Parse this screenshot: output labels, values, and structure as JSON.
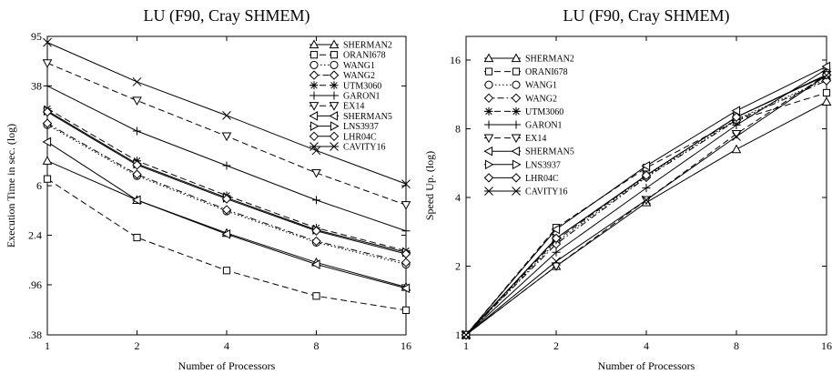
{
  "chart_data": [
    {
      "type": "line",
      "title": "LU (F90, Cray SHMEM)",
      "xlabel": "Number of Processors",
      "ylabel": "Execution Time in sec. (log)",
      "x": [
        1,
        2,
        4,
        8,
        16
      ],
      "x_ticks": [
        "1",
        "2",
        "4",
        "8",
        "16"
      ],
      "y_ticks": [
        {
          "label": ".38",
          "value": 0.38
        },
        {
          "label": ".96",
          "value": 0.96
        },
        {
          "label": "2.4",
          "value": 2.4
        },
        {
          "label": "6",
          "value": 6
        },
        {
          "label": "38",
          "value": 38
        },
        {
          "label": "95",
          "value": 95
        }
      ],
      "ylim": [
        0.38,
        95
      ],
      "xscale": "log2",
      "yscale": "log",
      "legend_position": "top-right",
      "series": [
        {
          "name": "SHERMAN2",
          "marker": "triangle-up",
          "dash": "solid",
          "values": [
            9.5,
            4.6,
            2.5,
            1.45,
            0.92
          ]
        },
        {
          "name": "ORANI678",
          "marker": "square",
          "dash": "dashed",
          "values": [
            6.8,
            2.3,
            1.25,
            0.78,
            0.6
          ]
        },
        {
          "name": "WANG1",
          "marker": "circle",
          "dash": "dotted",
          "values": [
            18.5,
            7.2,
            3.75,
            2.1,
            1.4
          ]
        },
        {
          "name": "WANG2",
          "marker": "diamond",
          "dash": "dashdot",
          "values": [
            19.0,
            7.4,
            3.85,
            2.15,
            1.45
          ]
        },
        {
          "name": "UTM3060",
          "marker": "asterisk",
          "dash": "dashed",
          "values": [
            25.0,
            9.5,
            5.0,
            2.75,
            1.8
          ]
        },
        {
          "name": "GARON1",
          "marker": "plus",
          "dash": "solid",
          "values": [
            38.0,
            16.5,
            8.7,
            4.6,
            2.6
          ]
        },
        {
          "name": "EX14",
          "marker": "triangle-down",
          "dash": "dashed",
          "values": [
            58.0,
            29.0,
            15.0,
            7.6,
            4.2
          ]
        },
        {
          "name": "SHERMAN5",
          "marker": "triangle-left",
          "dash": "solid",
          "values": [
            13.5,
            4.6,
            2.45,
            1.4,
            0.9
          ]
        },
        {
          "name": "LNS3937",
          "marker": "triangle-right",
          "dash": "solid",
          "values": [
            24.0,
            9.0,
            4.8,
            2.65,
            1.75
          ]
        },
        {
          "name": "LHR04C",
          "marker": "diamond",
          "dash": "solid",
          "values": [
            23.5,
            8.8,
            4.7,
            2.6,
            1.7
          ]
        },
        {
          "name": "CAVITY16",
          "marker": "x",
          "dash": "solid",
          "values": [
            85.0,
            41.0,
            22.0,
            11.5,
            6.2
          ]
        }
      ]
    },
    {
      "type": "line",
      "title": "LU (F90, Cray SHMEM)",
      "xlabel": "Number of Processors",
      "ylabel": "Speed Up.  (log)",
      "x": [
        1,
        2,
        4,
        8,
        16
      ],
      "x_ticks": [
        "1",
        "2",
        "4",
        "8",
        "16"
      ],
      "y_ticks": [
        {
          "label": "1",
          "value": 1
        },
        {
          "label": "2",
          "value": 2
        },
        {
          "label": "4",
          "value": 4
        },
        {
          "label": "8",
          "value": 8
        },
        {
          "label": "16",
          "value": 16
        }
      ],
      "ylim": [
        1,
        20
      ],
      "xscale": "log2",
      "yscale": "log2",
      "legend_position": "top-left",
      "series": [
        {
          "name": "SHERMAN2",
          "marker": "triangle-up",
          "dash": "solid",
          "values": [
            1,
            2.0,
            3.8,
            6.5,
            10.5
          ]
        },
        {
          "name": "ORANI678",
          "marker": "square",
          "dash": "dashed",
          "values": [
            1,
            2.95,
            5.4,
            8.7,
            11.5
          ]
        },
        {
          "name": "WANG1",
          "marker": "circle",
          "dash": "dotted",
          "values": [
            1,
            2.55,
            4.95,
            8.8,
            13.2
          ]
        },
        {
          "name": "WANG2",
          "marker": "diamond",
          "dash": "dashdot",
          "values": [
            1,
            2.5,
            4.9,
            8.7,
            13.0
          ]
        },
        {
          "name": "UTM3060",
          "marker": "asterisk",
          "dash": "dashed",
          "values": [
            1,
            2.6,
            5.0,
            9.0,
            13.8
          ]
        },
        {
          "name": "GARON1",
          "marker": "plus",
          "dash": "solid",
          "values": [
            1,
            2.3,
            4.4,
            8.3,
            14.6
          ]
        },
        {
          "name": "EX14",
          "marker": "triangle-down",
          "dash": "dashed",
          "values": [
            1,
            2.0,
            3.9,
            7.6,
            13.8
          ]
        },
        {
          "name": "SHERMAN5",
          "marker": "triangle-left",
          "dash": "solid",
          "values": [
            1,
            2.9,
            5.5,
            9.6,
            15.0
          ]
        },
        {
          "name": "LNS3937",
          "marker": "triangle-right",
          "dash": "solid",
          "values": [
            1,
            2.65,
            5.0,
            9.0,
            13.7
          ]
        },
        {
          "name": "LHR04C",
          "marker": "diamond",
          "dash": "solid",
          "values": [
            1,
            2.65,
            5.0,
            9.0,
            13.8
          ]
        },
        {
          "name": "CAVITY16",
          "marker": "x",
          "dash": "solid",
          "values": [
            1,
            2.1,
            3.9,
            7.4,
            13.7
          ]
        }
      ]
    }
  ]
}
